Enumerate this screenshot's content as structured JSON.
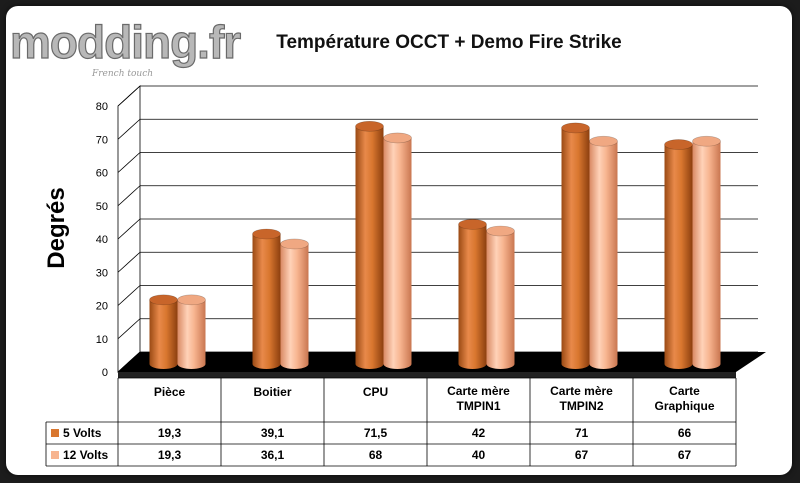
{
  "brand": {
    "logo_text": "modding.fr",
    "tagline": "French touch"
  },
  "colors": {
    "series1": "#d9772f",
    "series2": "#f7b48f",
    "floor": "#000000",
    "grid": "#000000"
  },
  "chart_data": {
    "type": "bar",
    "title": "Température OCCT + Demo Fire Strike",
    "ylabel": "Degrés",
    "xlabel": "",
    "ylim": [
      0,
      80
    ],
    "yticks": [
      0,
      10,
      20,
      30,
      40,
      50,
      60,
      70,
      80
    ],
    "grid": true,
    "legend": "data-table",
    "categories": [
      [
        "Pièce"
      ],
      [
        "Boitier"
      ],
      [
        "CPU"
      ],
      [
        "Carte mère",
        "TMPIN1"
      ],
      [
        "Carte mère",
        "TMPIN2"
      ],
      [
        "Carte",
        "Graphique"
      ]
    ],
    "series": [
      {
        "name": "5 Volts",
        "values": [
          19.3,
          39.1,
          71.5,
          42,
          71,
          66
        ],
        "labels": [
          "19,3",
          "39,1",
          "71,5",
          "42",
          "71",
          "66"
        ]
      },
      {
        "name": "12 Volts",
        "values": [
          19.3,
          36.1,
          68,
          40,
          67,
          67
        ],
        "labels": [
          "19,3",
          "36,1",
          "68",
          "40",
          "67",
          "67"
        ]
      }
    ]
  }
}
